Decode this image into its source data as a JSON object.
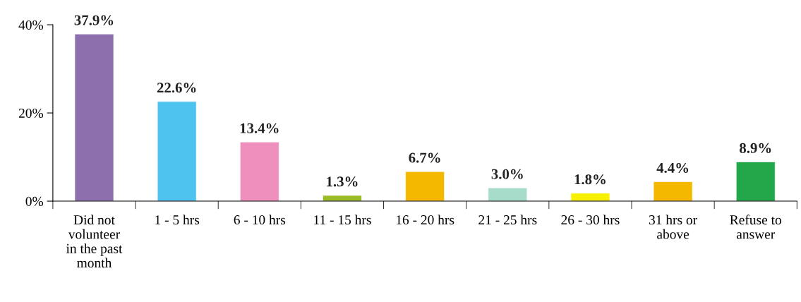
{
  "chart_data": {
    "type": "bar",
    "categories": [
      "Did not\nvolunteer\nin the past\nmonth",
      "1 - 5 hrs",
      "6 - 10 hrs",
      "11 - 15 hrs",
      "16 - 20 hrs",
      "21 - 25 hrs",
      "26 - 30 hrs",
      "31 hrs or\nabove",
      "Refuse to\nanswer"
    ],
    "values": [
      37.9,
      22.6,
      13.4,
      1.3,
      6.7,
      3.0,
      1.8,
      4.4,
      8.9
    ],
    "value_labels": [
      "37.9%",
      "22.6%",
      "13.4%",
      "1.3%",
      "6.7%",
      "3.0%",
      "1.8%",
      "4.4%",
      "8.9%"
    ],
    "colors": [
      "#8e6fad",
      "#4fc3ef",
      "#ee8fbe",
      "#9bbb26",
      "#f5b800",
      "#a7dccb",
      "#f7f000",
      "#f5b800",
      "#22a84a"
    ],
    "ylim": [
      0,
      40
    ],
    "yticks": [
      {
        "value": 0,
        "label": "0%"
      },
      {
        "value": 20,
        "label": "20%"
      },
      {
        "value": 40,
        "label": "40%"
      }
    ],
    "grid": false,
    "legend": false
  }
}
